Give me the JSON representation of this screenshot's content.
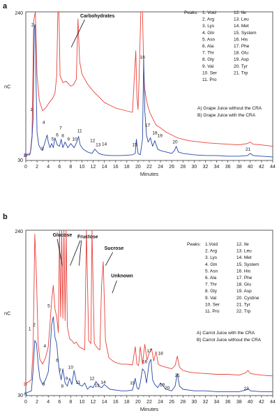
{
  "colors": {
    "red": "#e8413a",
    "blue": "#2747a6"
  },
  "chart_data": [
    {
      "type": "line",
      "panel": "a",
      "xlabel": "Minutes",
      "ylabel": "nC",
      "xlim": [
        0,
        44
      ],
      "ylim": [
        30,
        240
      ],
      "xticks": [
        "0",
        "2",
        "4",
        "6",
        "8",
        "10",
        "12",
        "14",
        "16",
        "18",
        "20",
        "22",
        "24",
        "26",
        "28",
        "30",
        "32",
        "34",
        "36",
        "38",
        "40",
        "42",
        "44"
      ],
      "y_min_label": "30",
      "y_max_label": "240",
      "peaks_title": "Peaks:",
      "peaks_list": [
        "1. Void",
        "2. Arg",
        "3. Lys",
        "4. Gln",
        "5. Asn",
        "6. Ala",
        "7. Thr",
        "8. Gly",
        "9. Val",
        "10. Ser",
        "11. Pro",
        "12. Ile",
        "13. Leu",
        "14. Met",
        "15. System",
        "16. His",
        "17. Phe",
        "18. Glu",
        "19. Asp",
        "20. Tyr",
        "21. Trp"
      ],
      "legend": [
        {
          "marker": "A",
          "label": "A)  Grape Juice without the CRA",
          "color": "#e8413a"
        },
        {
          "marker": "B",
          "label": "B)  Grape Juice with the CRA",
          "color": "#2747a6"
        }
      ],
      "annotations": [
        {
          "text": "Carbohydrates",
          "x": 9.7,
          "y": 232
        }
      ],
      "peak_labels": [
        {
          "t": "1",
          "x": 1.0,
          "y": 100
        },
        {
          "t": "2",
          "x": 1.2,
          "y": 220
        },
        {
          "t": "3",
          "x": 2.9,
          "y": 45
        },
        {
          "t": "4",
          "x": 3.2,
          "y": 82
        },
        {
          "t": "5",
          "x": 4.8,
          "y": 58
        },
        {
          "t": "6",
          "x": 5.6,
          "y": 64
        },
        {
          "t": "7",
          "x": 6.2,
          "y": 74
        },
        {
          "t": "8",
          "x": 6.6,
          "y": 63
        },
        {
          "t": "9",
          "x": 7.6,
          "y": 58
        },
        {
          "t": "10",
          "x": 8.7,
          "y": 58
        },
        {
          "t": "11",
          "x": 9.6,
          "y": 70
        },
        {
          "t": "12",
          "x": 11.9,
          "y": 56
        },
        {
          "t": "13",
          "x": 12.9,
          "y": 50
        },
        {
          "t": "14",
          "x": 14.0,
          "y": 51
        },
        {
          "t": "15",
          "x": 19.4,
          "y": 50
        },
        {
          "t": "16",
          "x": 20.8,
          "y": 174
        },
        {
          "t": "17",
          "x": 21.7,
          "y": 78
        },
        {
          "t": "18",
          "x": 23.0,
          "y": 67
        },
        {
          "t": "19",
          "x": 23.9,
          "y": 63
        },
        {
          "t": "20",
          "x": 26.6,
          "y": 54
        },
        {
          "t": "21",
          "x": 39.6,
          "y": 44
        }
      ],
      "series": [
        {
          "name": "A) Grape Juice without the CRA",
          "trace_label": "A",
          "color": "#e8413a",
          "x": [
            0,
            0.8,
            1.1,
            1.4,
            1.7,
            2.0,
            2.4,
            3.0,
            3.6,
            4.2,
            4.8,
            5.2,
            5.5,
            5.7,
            5.8,
            5.9,
            6.1,
            6.6,
            7.2,
            8.0,
            8.5,
            9.0,
            9.3,
            9.6,
            10,
            11,
            12,
            13,
            14,
            15,
            16,
            17,
            18,
            19,
            19.6,
            19.8,
            20.0,
            20.2,
            20.5,
            20.8,
            21.0,
            21.2,
            21.5,
            21.8,
            22.2,
            22.7,
            23.2,
            24,
            25,
            26,
            27,
            28,
            29,
            30,
            31,
            32,
            34,
            36,
            38,
            39.5,
            40,
            40.5,
            42,
            44
          ],
          "y": [
            38,
            40,
            65,
            228,
            240,
            150,
            115,
            100,
            105,
            112,
            118,
            125,
            150,
            240,
            240,
            240,
            150,
            140,
            142,
            135,
            137,
            145,
            230,
            170,
            152,
            138,
            128,
            120,
            112,
            108,
            104,
            102,
            100,
            98,
            185,
            120,
            102,
            150,
            240,
            240,
            160,
            130,
            115,
            105,
            96,
            88,
            80,
            76,
            70,
            66,
            62,
            60,
            58,
            57,
            56,
            55,
            54,
            53,
            52,
            54,
            56,
            53,
            52,
            50
          ]
        },
        {
          "name": "B) Grape Juice with the CRA",
          "trace_label": "B",
          "color": "#2747a6",
          "x": [
            0,
            0.7,
            0.9,
            1.1,
            1.3,
            1.5,
            1.6,
            1.7,
            1.8,
            2.0,
            2.3,
            2.7,
            3.0,
            3.2,
            3.5,
            3.8,
            4.0,
            4.3,
            4.6,
            4.9,
            5.2,
            5.6,
            6.0,
            6.3,
            6.6,
            7.0,
            7.5,
            8.0,
            8.6,
            9.1,
            9.4,
            9.7,
            10.2,
            11,
            11.8,
            12.3,
            13,
            13.8,
            15,
            17,
            19,
            19.5,
            19.7,
            20.0,
            20.4,
            20.8,
            21.0,
            21.2,
            21.5,
            21.8,
            22.2,
            22.6,
            23.0,
            23.5,
            24,
            25,
            26,
            26.5,
            26.8,
            27.2,
            28,
            30,
            32,
            34,
            36,
            38,
            39.5,
            40,
            40.5,
            42,
            44
          ],
          "y": [
            38,
            38,
            45,
            62,
            90,
            215,
            222,
            220,
            150,
            70,
            52,
            46,
            44,
            50,
            58,
            66,
            56,
            48,
            54,
            48,
            62,
            52,
            50,
            60,
            48,
            56,
            48,
            54,
            48,
            56,
            64,
            52,
            46,
            42,
            40,
            46,
            40,
            38,
            37,
            37,
            38,
            40,
            60,
            40,
            38,
            60,
            173,
            100,
            66,
            56,
            62,
            50,
            58,
            46,
            44,
            42,
            40,
            44,
            50,
            42,
            40,
            38,
            37,
            37,
            36,
            36,
            37,
            40,
            37,
            36,
            35
          ]
        }
      ]
    },
    {
      "type": "line",
      "panel": "b",
      "xlabel": "Minutes",
      "ylabel": "nC",
      "xlim": [
        0,
        44
      ],
      "ylim": [
        30,
        240
      ],
      "xticks": [
        "0",
        "2",
        "4",
        "6",
        "8",
        "10",
        "12",
        "14",
        "16",
        "18",
        "20",
        "22",
        "24",
        "26",
        "28",
        "30",
        "32",
        "34",
        "36",
        "38",
        "40",
        "42",
        "44"
      ],
      "y_min_label": "30",
      "y_max_label": "240",
      "peaks_title": "Peaks:",
      "peaks_list": [
        "1.Void",
        "2. Arg",
        "3. Lys",
        "4. Gln",
        "5. Asn",
        "6. Ala",
        "7. Thr",
        "8. Gly",
        "9. Val",
        "10. Ser",
        "11. Pro",
        "12. Ile",
        "13. Leu",
        "14. Met",
        "15. System",
        "16. His",
        "17. Phe",
        "18. Glu",
        "19. Asp",
        "20. Cystine",
        "21. Tyr",
        "22. Trp"
      ],
      "legend": [
        {
          "marker": "A",
          "label": "A)  Carrot Juice with the CRA",
          "color": "#2747a6"
        },
        {
          "marker": "B",
          "label": "B)  Carrot Juice without the CRA",
          "color": "#e8413a"
        }
      ],
      "annotations": [
        {
          "text": "Glucose",
          "x": 4.8,
          "y": 232
        },
        {
          "text": "Fructose",
          "x": 9.2,
          "y": 230
        },
        {
          "text": "Sucrose",
          "x": 14.0,
          "y": 215
        },
        {
          "text": "Unknown",
          "x": 15.2,
          "y": 180
        }
      ],
      "peak_labels": [
        {
          "t": "1",
          "x": 0.7,
          "y": 113
        },
        {
          "t": "2",
          "x": 1.5,
          "y": 118
        },
        {
          "t": "3",
          "x": 3.2,
          "y": 43
        },
        {
          "t": "4",
          "x": 3.4,
          "y": 91
        },
        {
          "t": "5",
          "x": 4.1,
          "y": 142
        },
        {
          "t": "6",
          "x": 5.6,
          "y": 73
        },
        {
          "t": "7",
          "x": 6.1,
          "y": 60
        },
        {
          "t": "8",
          "x": 6.5,
          "y": 40
        },
        {
          "t": "9",
          "x": 7.3,
          "y": 50
        },
        {
          "t": "10",
          "x": 8.0,
          "y": 64
        },
        {
          "t": "11",
          "x": 9.3,
          "y": 45
        },
        {
          "t": "12",
          "x": 11.8,
          "y": 50
        },
        {
          "t": "13",
          "x": 12.7,
          "y": 41
        },
        {
          "t": "14",
          "x": 13.8,
          "y": 45
        },
        {
          "t": "15",
          "x": 19.0,
          "y": 44
        },
        {
          "t": "16",
          "x": 21.2,
          "y": 71
        },
        {
          "t": "17",
          "x": 22.0,
          "y": 85
        },
        {
          "t": "18",
          "x": 24.0,
          "y": 82
        },
        {
          "t": "19",
          "x": 24.3,
          "y": 42
        },
        {
          "t": "20",
          "x": 25.2,
          "y": 38
        },
        {
          "t": "21",
          "x": 27.0,
          "y": 54
        },
        {
          "t": "22",
          "x": 39.3,
          "y": 37
        }
      ],
      "series": [
        {
          "name": "A) Carrot Juice with the CRA",
          "trace_label": "A",
          "color": "#2747a6",
          "x": [
            0,
            1.0,
            1.3,
            1.6,
            1.9,
            2.2,
            2.5,
            3.0,
            3.5,
            4.0,
            4.3,
            4.6,
            4.9,
            5.2,
            5.5,
            5.8,
            6.0,
            6.3,
            6.6,
            7.0,
            7.4,
            7.8,
            8.2,
            8.6,
            9.0,
            9.5,
            10,
            10.5,
            11,
            11.5,
            12,
            12.5,
            13,
            13.5,
            14,
            15,
            16,
            17,
            18,
            19,
            19.5,
            19.8,
            20.1,
            20.4,
            20.8,
            21.2,
            21.5,
            22.0,
            22.3,
            22.6,
            23,
            23.5,
            24,
            25,
            26,
            26.6,
            27.0,
            27.4,
            28,
            29,
            30,
            32,
            34,
            36,
            38,
            39.2,
            39.6,
            40,
            42,
            44
          ],
          "y": [
            33,
            36,
            62,
            100,
            96,
            70,
            52,
            44,
            50,
            60,
            85,
            120,
            130,
            104,
            96,
            72,
            60,
            50,
            64,
            46,
            42,
            52,
            44,
            62,
            48,
            44,
            42,
            46,
            38,
            42,
            40,
            48,
            42,
            40,
            44,
            38,
            37,
            36,
            36,
            37,
            52,
            40,
            38,
            46,
            64,
            60,
            46,
            72,
            76,
            50,
            44,
            40,
            46,
            38,
            36,
            42,
            58,
            42,
            38,
            37,
            36,
            36,
            35,
            35,
            35,
            37,
            39,
            36,
            35,
            35
          ]
        },
        {
          "name": "B) Carrot Juice without the CRA",
          "trace_label": "B",
          "color": "#e8413a",
          "x": [
            0,
            1.0,
            1.3,
            1.6,
            1.9,
            2.2,
            2.5,
            3.0,
            3.5,
            4.0,
            4.3,
            4.6,
            4.9,
            5.2,
            5.5,
            5.8,
            6.0,
            6.2,
            6.4,
            6.6,
            6.8,
            7.0,
            7.2,
            7.4,
            7.8,
            8.2,
            8.6,
            9.0,
            9.5,
            10,
            10.5,
            10.8,
            11.2,
            11.6,
            11.8,
            12.2,
            12.8,
            13.2,
            13.5,
            13.8,
            14.2,
            14.8,
            15.5,
            16,
            17,
            18,
            19,
            19.5,
            19.8,
            20.1,
            20.4,
            20.8,
            21.2,
            21.6,
            22.0,
            22.4,
            22.8,
            23.2,
            23.6,
            24,
            25,
            26,
            26.6,
            27.0,
            27.4,
            28,
            29,
            30,
            32,
            34,
            36,
            38,
            39.2,
            39.6,
            40,
            42,
            44
          ],
          "y": [
            45,
            50,
            90,
            235,
            180,
            96,
            76,
            70,
            78,
            92,
            120,
            150,
            170,
            140,
            130,
            110,
            240,
            130,
            240,
            128,
            240,
            125,
            240,
            118,
            102,
            100,
            96,
            98,
            92,
            90,
            88,
            240,
            100,
            96,
            240,
            96,
            90,
            88,
            170,
            200,
            100,
            78,
            74,
            72,
            70,
            70,
            69,
            92,
            70,
            68,
            92,
            70,
            95,
            75,
            84,
            90,
            74,
            86,
            70,
            68,
            66,
            64,
            68,
            80,
            66,
            62,
            60,
            59,
            58,
            57,
            57,
            56,
            59,
            62,
            58,
            56,
            55
          ]
        }
      ]
    }
  ]
}
